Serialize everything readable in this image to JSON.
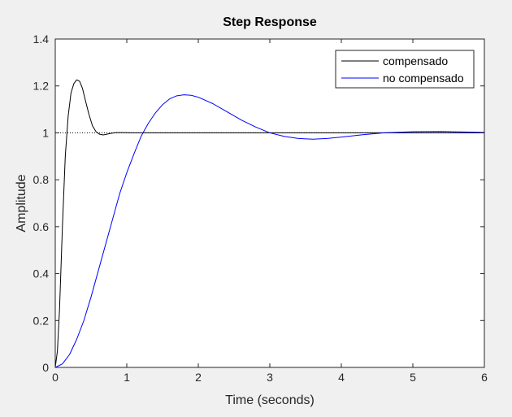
{
  "chart_data": {
    "type": "line",
    "title": "Step Response",
    "xlabel": "Time (seconds)",
    "ylabel": "Amplitude",
    "xlim": [
      0,
      6
    ],
    "ylim": [
      0,
      1.4
    ],
    "x_ticks": [
      0,
      1,
      2,
      3,
      4,
      5,
      6
    ],
    "x_tick_labels": [
      "0",
      "1",
      "2",
      "3",
      "4",
      "5",
      "6"
    ],
    "y_ticks": [
      0,
      0.2,
      0.4,
      0.6,
      0.8,
      1,
      1.2,
      1.4
    ],
    "y_tick_labels": [
      "0",
      "0.2",
      "0.4",
      "0.6",
      "0.8",
      "1",
      "1.2",
      "1.4"
    ],
    "grid": false,
    "legend_position": "top-right",
    "reference_line": {
      "y": 1,
      "style": "dotted",
      "color": "#000000"
    },
    "series": [
      {
        "name": "compensado",
        "color": "#000000",
        "points": [
          [
            0,
            0
          ],
          [
            0.03,
            0.07
          ],
          [
            0.06,
            0.25
          ],
          [
            0.1,
            0.6
          ],
          [
            0.14,
            0.9
          ],
          [
            0.18,
            1.07
          ],
          [
            0.22,
            1.17
          ],
          [
            0.26,
            1.21
          ],
          [
            0.3,
            1.226
          ],
          [
            0.34,
            1.22
          ],
          [
            0.38,
            1.19
          ],
          [
            0.42,
            1.14
          ],
          [
            0.47,
            1.08
          ],
          [
            0.52,
            1.03
          ],
          [
            0.57,
            1.005
          ],
          [
            0.62,
            0.994
          ],
          [
            0.67,
            0.991
          ],
          [
            0.72,
            0.994
          ],
          [
            0.78,
            0.998
          ],
          [
            0.85,
            1.001
          ],
          [
            0.95,
            1.001
          ],
          [
            1.1,
            1
          ],
          [
            6,
            1
          ]
        ]
      },
      {
        "name": "no compensado",
        "color": "#0000ff",
        "points": [
          [
            0,
            0
          ],
          [
            0.1,
            0.015
          ],
          [
            0.2,
            0.055
          ],
          [
            0.3,
            0.12
          ],
          [
            0.4,
            0.2
          ],
          [
            0.5,
            0.3
          ],
          [
            0.6,
            0.41
          ],
          [
            0.7,
            0.52
          ],
          [
            0.8,
            0.63
          ],
          [
            0.9,
            0.74
          ],
          [
            1.0,
            0.83
          ],
          [
            1.1,
            0.91
          ],
          [
            1.2,
            0.985
          ],
          [
            1.3,
            1.04
          ],
          [
            1.4,
            1.085
          ],
          [
            1.5,
            1.12
          ],
          [
            1.6,
            1.145
          ],
          [
            1.7,
            1.158
          ],
          [
            1.8,
            1.162
          ],
          [
            1.9,
            1.16
          ],
          [
            2.0,
            1.152
          ],
          [
            2.2,
            1.125
          ],
          [
            2.4,
            1.09
          ],
          [
            2.6,
            1.055
          ],
          [
            2.8,
            1.025
          ],
          [
            3.0,
            1.0
          ],
          [
            3.2,
            0.985
          ],
          [
            3.4,
            0.976
          ],
          [
            3.6,
            0.973
          ],
          [
            3.8,
            0.976
          ],
          [
            4.0,
            0.982
          ],
          [
            4.3,
            0.992
          ],
          [
            4.6,
            1.0
          ],
          [
            5.0,
            1.005
          ],
          [
            5.4,
            1.006
          ],
          [
            5.8,
            1.003
          ],
          [
            6.0,
            1.002
          ]
        ]
      }
    ]
  }
}
